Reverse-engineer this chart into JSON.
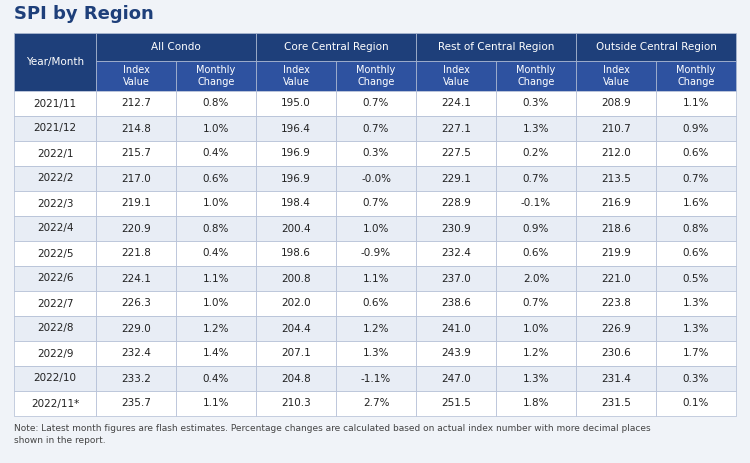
{
  "title": "SPI by Region",
  "note": "Note: Latest month figures are flash estimates. Percentage changes are calculated based on actual index number with more decimal places\nshown in the report.",
  "rows": [
    [
      "2021/11",
      "212.7",
      "0.8%",
      "195.0",
      "0.7%",
      "224.1",
      "0.3%",
      "208.9",
      "1.1%"
    ],
    [
      "2021/12",
      "214.8",
      "1.0%",
      "196.4",
      "0.7%",
      "227.1",
      "1.3%",
      "210.7",
      "0.9%"
    ],
    [
      "2022/1",
      "215.7",
      "0.4%",
      "196.9",
      "0.3%",
      "227.5",
      "0.2%",
      "212.0",
      "0.6%"
    ],
    [
      "2022/2",
      "217.0",
      "0.6%",
      "196.9",
      "-0.0%",
      "229.1",
      "0.7%",
      "213.5",
      "0.7%"
    ],
    [
      "2022/3",
      "219.1",
      "1.0%",
      "198.4",
      "0.7%",
      "228.9",
      "-0.1%",
      "216.9",
      "1.6%"
    ],
    [
      "2022/4",
      "220.9",
      "0.8%",
      "200.4",
      "1.0%",
      "230.9",
      "0.9%",
      "218.6",
      "0.8%"
    ],
    [
      "2022/5",
      "221.8",
      "0.4%",
      "198.6",
      "-0.9%",
      "232.4",
      "0.6%",
      "219.9",
      "0.6%"
    ],
    [
      "2022/6",
      "224.1",
      "1.1%",
      "200.8",
      "1.1%",
      "237.0",
      "2.0%",
      "221.0",
      "0.5%"
    ],
    [
      "2022/7",
      "226.3",
      "1.0%",
      "202.0",
      "0.6%",
      "238.6",
      "0.7%",
      "223.8",
      "1.3%"
    ],
    [
      "2022/8",
      "229.0",
      "1.2%",
      "204.4",
      "1.2%",
      "241.0",
      "1.0%",
      "226.9",
      "1.3%"
    ],
    [
      "2022/9",
      "232.4",
      "1.4%",
      "207.1",
      "1.3%",
      "243.9",
      "1.2%",
      "230.6",
      "1.7%"
    ],
    [
      "2022/10",
      "233.2",
      "0.4%",
      "204.8",
      "-1.1%",
      "247.0",
      "1.3%",
      "231.4",
      "0.3%"
    ],
    [
      "2022/11*",
      "235.7",
      "1.1%",
      "210.3",
      "2.7%",
      "251.5",
      "1.8%",
      "231.5",
      "0.1%"
    ]
  ],
  "bg_color": "#f0f3f8",
  "header_dark_bg": "#1e3f7a",
  "header_mid_bg": "#2e52a0",
  "header_text_color": "#ffffff",
  "row_even_bg": "#ffffff",
  "row_odd_bg": "#e8edf5",
  "cell_text_color": "#222222",
  "border_color": "#b0bcd4",
  "title_color": "#1e3f7a",
  "note_color": "#444444"
}
